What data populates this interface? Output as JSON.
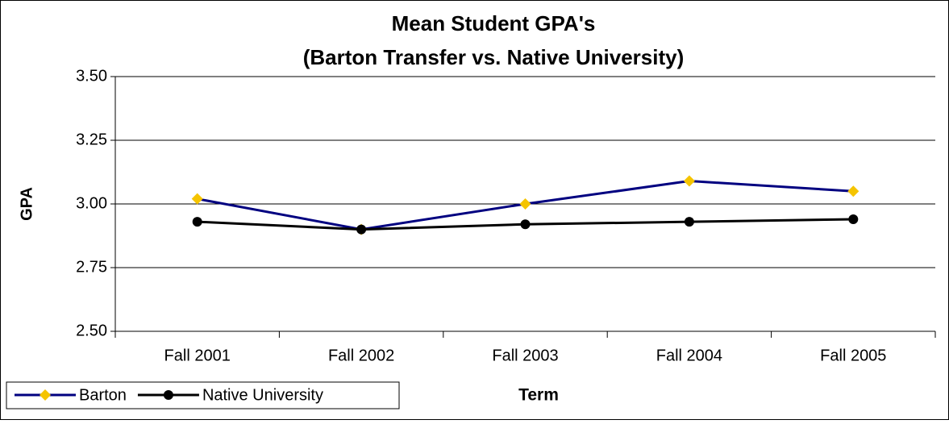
{
  "chart_data": {
    "type": "line",
    "title": "Mean Student GPA's",
    "subtitle": "(Barton Transfer vs. Native University)",
    "x_label": "Term",
    "y_label": "GPA",
    "categories": [
      "Fall 2001",
      "Fall 2002",
      "Fall 2003",
      "Fall 2004",
      "Fall 2005"
    ],
    "series": [
      {
        "name": "Barton",
        "color": "#000080",
        "marker_color": "#f5c400",
        "marker": "diamond",
        "values": [
          3.02,
          2.9,
          3.0,
          3.09,
          3.05
        ]
      },
      {
        "name": "Native University",
        "color": "#000000",
        "marker_color": "#000000",
        "marker": "circle",
        "values": [
          2.93,
          2.9,
          2.92,
          2.93,
          2.94
        ]
      }
    ],
    "ylim": [
      2.5,
      3.5
    ],
    "yticks": [
      {
        "value": 2.5,
        "label": "2.50"
      },
      {
        "value": 2.75,
        "label": "2.75"
      },
      {
        "value": 3.0,
        "label": "3.00"
      },
      {
        "value": 3.25,
        "label": "3.25"
      },
      {
        "value": 3.5,
        "label": "3.50"
      }
    ],
    "grid": true,
    "legend": "bottom-left"
  }
}
